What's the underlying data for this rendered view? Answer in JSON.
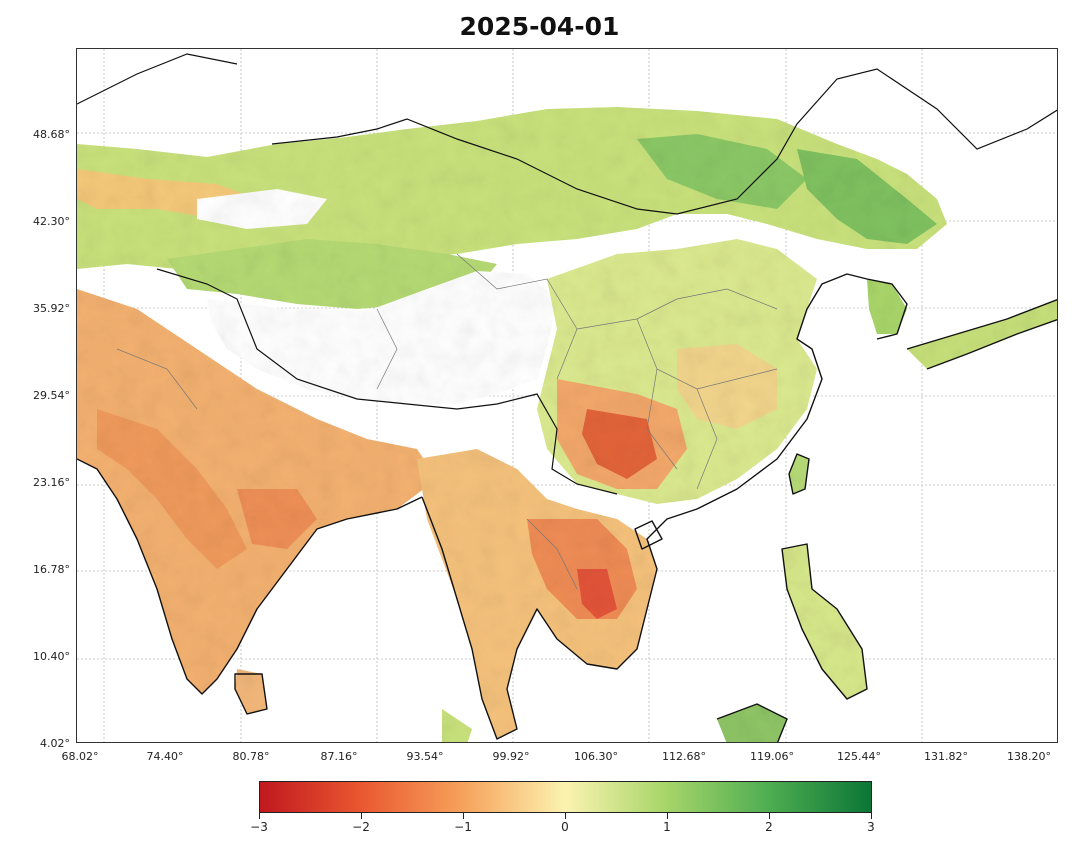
{
  "map": {
    "title": "2025-04-01",
    "lat_labels": [
      "48.68°",
      "42.30°",
      "35.92°",
      "29.54°",
      "23.16°",
      "16.78°",
      "10.40°",
      "4.02°"
    ],
    "lon_labels": [
      "68.02°",
      "74.40°",
      "80.78°",
      "87.16°",
      "93.54°",
      "99.92°",
      "106.30°",
      "112.68°",
      "119.06°",
      "125.44°",
      "131.82°",
      "138.20°"
    ],
    "extent": {
      "lon_min": 68.02,
      "lon_max": 140.0,
      "lat_min": 4.02,
      "lat_max": 54.0
    }
  },
  "colorbar": {
    "min": -3,
    "max": 3,
    "ticks": [
      "−3",
      "−2",
      "−1",
      "0",
      "1",
      "2",
      "3"
    ],
    "colors": [
      "#c0181f",
      "#f6a15a",
      "#fbf3b0",
      "#4fae52",
      "#0b7636"
    ]
  }
}
